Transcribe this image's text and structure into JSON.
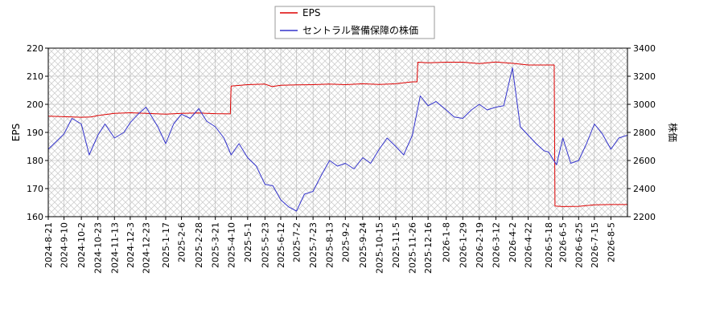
{
  "chart_data": {
    "type": "line",
    "title": "",
    "xlabel": "",
    "ylabel_left": "EPS",
    "ylabel_right": "株価",
    "ylim_left": [
      160,
      220
    ],
    "ylim_right": [
      2200,
      3400
    ],
    "yticks_left": [
      160,
      170,
      180,
      190,
      200,
      210,
      220
    ],
    "yticks_right": [
      2200,
      2400,
      2600,
      2800,
      3000,
      3200,
      3400
    ],
    "x_range": [
      "2024-08-21",
      "2026-08-26"
    ],
    "x_tick_labels": [
      "2024-8-21",
      "2024-9-10",
      "2024-10-2",
      "2024-10-23",
      "2024-11-13",
      "2024-12-3",
      "2024-12-23",
      "2025-1-17",
      "2025-2-6",
      "2025-2-28",
      "2025-3-21",
      "2025-4-10",
      "2025-5-1",
      "2025-5-23",
      "2025-6-12",
      "2025-7-2",
      "2025-7-23",
      "2025-8-13",
      "2025-9-2",
      "2025-9-24",
      "2025-10-15",
      "2025-11-5",
      "2025-11-26",
      "2025-12-16",
      "2026-1-8",
      "2026-1-29",
      "2026-2-19",
      "2026-3-12",
      "2026-4-2",
      "2026-4-22",
      "2026-5-18",
      "2026-6-5",
      "2026-6-25",
      "2026-7-15",
      "2026-8-5"
    ],
    "grid": true,
    "hatched_background": true,
    "legend_position": "top-center",
    "series": [
      {
        "name": "EPS",
        "axis": "left",
        "color": "#dd0000",
        "points": [
          [
            "2024-08-21",
            195.8
          ],
          [
            "2024-09-10",
            195.6
          ],
          [
            "2024-10-02",
            195.4
          ],
          [
            "2024-10-14",
            195.5
          ],
          [
            "2024-10-23",
            196.0
          ],
          [
            "2024-11-13",
            196.8
          ],
          [
            "2024-12-03",
            197.0
          ],
          [
            "2024-12-23",
            196.8
          ],
          [
            "2025-01-17",
            196.5
          ],
          [
            "2025-02-06",
            196.8
          ],
          [
            "2025-02-28",
            196.9
          ],
          [
            "2025-03-21",
            196.7
          ],
          [
            "2025-04-09",
            196.6
          ],
          [
            "2025-04-10",
            206.5
          ],
          [
            "2025-05-01",
            207.0
          ],
          [
            "2025-05-23",
            207.2
          ],
          [
            "2025-06-01",
            206.3
          ],
          [
            "2025-06-12",
            206.8
          ],
          [
            "2025-07-02",
            206.9
          ],
          [
            "2025-07-23",
            207.0
          ],
          [
            "2025-08-13",
            207.2
          ],
          [
            "2025-09-02",
            207.0
          ],
          [
            "2025-09-24",
            207.3
          ],
          [
            "2025-10-15",
            207.1
          ],
          [
            "2025-11-05",
            207.3
          ],
          [
            "2025-11-26",
            208.0
          ],
          [
            "2025-12-02",
            208.0
          ],
          [
            "2025-12-03",
            215.0
          ],
          [
            "2025-12-16",
            214.8
          ],
          [
            "2026-01-08",
            215.0
          ],
          [
            "2026-01-29",
            215.0
          ],
          [
            "2026-02-19",
            214.5
          ],
          [
            "2026-03-12",
            215.1
          ],
          [
            "2026-04-02",
            214.6
          ],
          [
            "2026-04-22",
            214.0
          ],
          [
            "2026-05-18",
            214.0
          ],
          [
            "2026-05-25",
            214.0
          ],
          [
            "2026-05-26",
            163.8
          ],
          [
            "2026-06-05",
            163.6
          ],
          [
            "2026-06-25",
            163.7
          ],
          [
            "2026-07-15",
            164.2
          ],
          [
            "2026-08-05",
            164.3
          ],
          [
            "2026-08-26",
            164.3
          ]
        ]
      },
      {
        "name": "セントラル警備保障の株価",
        "axis": "right",
        "color": "#3333cc",
        "points": [
          [
            "2024-08-21",
            2680
          ],
          [
            "2024-09-01",
            2740
          ],
          [
            "2024-09-10",
            2790
          ],
          [
            "2024-09-20",
            2900
          ],
          [
            "2024-10-02",
            2860
          ],
          [
            "2024-10-12",
            2640
          ],
          [
            "2024-10-23",
            2780
          ],
          [
            "2024-11-01",
            2860
          ],
          [
            "2024-11-13",
            2760
          ],
          [
            "2024-11-25",
            2800
          ],
          [
            "2024-12-03",
            2870
          ],
          [
            "2024-12-13",
            2930
          ],
          [
            "2024-12-23",
            2980
          ],
          [
            "2025-01-07",
            2840
          ],
          [
            "2025-01-17",
            2720
          ],
          [
            "2025-01-27",
            2860
          ],
          [
            "2025-02-06",
            2930
          ],
          [
            "2025-02-17",
            2900
          ],
          [
            "2025-02-28",
            2970
          ],
          [
            "2025-03-10",
            2880
          ],
          [
            "2025-03-21",
            2840
          ],
          [
            "2025-04-01",
            2760
          ],
          [
            "2025-04-10",
            2640
          ],
          [
            "2025-04-20",
            2720
          ],
          [
            "2025-05-01",
            2620
          ],
          [
            "2025-05-12",
            2560
          ],
          [
            "2025-05-23",
            2430
          ],
          [
            "2025-06-02",
            2420
          ],
          [
            "2025-06-12",
            2320
          ],
          [
            "2025-06-22",
            2270
          ],
          [
            "2025-07-02",
            2240
          ],
          [
            "2025-07-12",
            2360
          ],
          [
            "2025-07-23",
            2380
          ],
          [
            "2025-08-03",
            2500
          ],
          [
            "2025-08-13",
            2600
          ],
          [
            "2025-08-23",
            2560
          ],
          [
            "2025-09-02",
            2580
          ],
          [
            "2025-09-13",
            2540
          ],
          [
            "2025-09-24",
            2620
          ],
          [
            "2025-10-04",
            2580
          ],
          [
            "2025-10-15",
            2680
          ],
          [
            "2025-10-25",
            2760
          ],
          [
            "2025-11-05",
            2700
          ],
          [
            "2025-11-15",
            2640
          ],
          [
            "2025-11-26",
            2780
          ],
          [
            "2025-12-06",
            3060
          ],
          [
            "2025-12-16",
            2990
          ],
          [
            "2025-12-26",
            3020
          ],
          [
            "2026-01-08",
            2960
          ],
          [
            "2026-01-18",
            2910
          ],
          [
            "2026-01-29",
            2900
          ],
          [
            "2026-02-09",
            2960
          ],
          [
            "2026-02-19",
            3000
          ],
          [
            "2026-03-01",
            2960
          ],
          [
            "2026-03-12",
            2980
          ],
          [
            "2026-03-22",
            2990
          ],
          [
            "2026-04-02",
            3260
          ],
          [
            "2026-04-12",
            2840
          ],
          [
            "2026-04-22",
            2780
          ],
          [
            "2026-05-02",
            2720
          ],
          [
            "2026-05-12",
            2670
          ],
          [
            "2026-05-18",
            2660
          ],
          [
            "2026-05-28",
            2570
          ],
          [
            "2026-06-05",
            2760
          ],
          [
            "2026-06-15",
            2580
          ],
          [
            "2026-06-25",
            2600
          ],
          [
            "2026-07-05",
            2720
          ],
          [
            "2026-07-15",
            2860
          ],
          [
            "2026-07-25",
            2790
          ],
          [
            "2026-08-05",
            2680
          ],
          [
            "2026-08-15",
            2760
          ],
          [
            "2026-08-26",
            2780
          ]
        ]
      }
    ]
  },
  "colors": {
    "plot_bg_hatch": "#cfcfcf",
    "grid": "#b0b0b0",
    "frame": "#000000"
  }
}
